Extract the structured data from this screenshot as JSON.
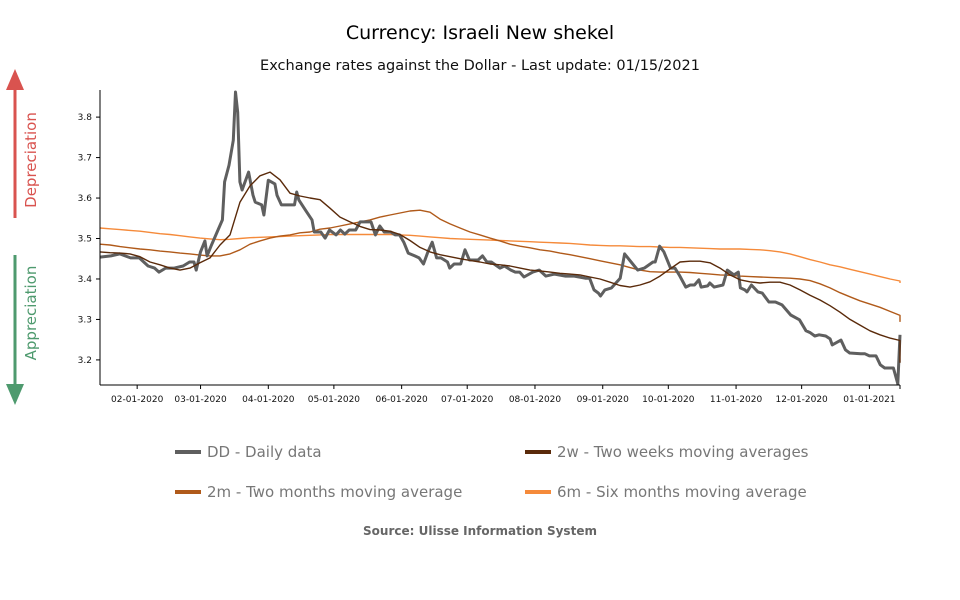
{
  "title": "Currency: Israeli New shekel",
  "subtitle": "Exchange rates against the Dollar - Last update: 01/15/2021",
  "side_labels": {
    "up": "Depreciation",
    "down": "Appreciation",
    "up_color": "#d9534f",
    "down_color": "#4e9a6e"
  },
  "source": "Source: Ulisse Information System",
  "chart_data": {
    "type": "line",
    "title": "Currency: Israeli New shekel",
    "xlabel": "",
    "ylabel": "",
    "x_unit": "days since 01-15-2020",
    "xlim": [
      0,
      366
    ],
    "ylim": [
      3.138,
      3.867
    ],
    "yticks": [
      3.2,
      3.3,
      3.4,
      3.5,
      3.6,
      3.7,
      3.8
    ],
    "ytick_labels": [
      "3.2",
      "3.3",
      "3.4",
      "3.5",
      "3.6",
      "3.7",
      "3.8"
    ],
    "xticks": [
      17,
      46,
      77,
      107,
      138,
      168,
      199,
      230,
      260,
      291,
      321,
      352
    ],
    "xtick_labels": [
      "02-01-2020",
      "03-01-2020",
      "04-01-2020",
      "05-01-2020",
      "06-01-2020",
      "07-01-2020",
      "08-01-2020",
      "09-01-2020",
      "10-01-2020",
      "11-01-2020",
      "12-01-2020",
      "01-01-2021"
    ],
    "legend_position": "bottom",
    "series": [
      {
        "key": "dd",
        "name": "DD - Daily data",
        "color": "#5f5f5f",
        "width": 3,
        "points": [
          [
            0,
            3.454
          ],
          [
            5,
            3.457
          ],
          [
            9,
            3.462
          ],
          [
            14,
            3.452
          ],
          [
            18,
            3.452
          ],
          [
            22,
            3.432
          ],
          [
            25,
            3.427
          ],
          [
            27,
            3.417
          ],
          [
            30,
            3.427
          ],
          [
            34,
            3.427
          ],
          [
            38,
            3.432
          ],
          [
            41,
            3.442
          ],
          [
            43,
            3.442
          ],
          [
            44,
            3.422
          ],
          [
            46,
            3.467
          ],
          [
            48,
            3.494
          ],
          [
            49,
            3.457
          ],
          [
            51,
            3.484
          ],
          [
            54,
            3.521
          ],
          [
            56,
            3.546
          ],
          [
            57,
            3.64
          ],
          [
            59,
            3.681
          ],
          [
            61,
            3.743
          ],
          [
            62,
            3.862
          ],
          [
            63,
            3.812
          ],
          [
            64,
            3.64
          ],
          [
            65,
            3.62
          ],
          [
            68,
            3.664
          ],
          [
            70,
            3.607
          ],
          [
            71,
            3.59
          ],
          [
            74,
            3.583
          ],
          [
            75,
            3.558
          ],
          [
            77,
            3.644
          ],
          [
            80,
            3.635
          ],
          [
            81,
            3.607
          ],
          [
            83,
            3.583
          ],
          [
            87,
            3.583
          ],
          [
            89,
            3.583
          ],
          [
            90,
            3.615
          ],
          [
            91,
            3.595
          ],
          [
            94,
            3.57
          ],
          [
            97,
            3.546
          ],
          [
            98,
            3.516
          ],
          [
            101,
            3.516
          ],
          [
            103,
            3.501
          ],
          [
            105,
            3.521
          ],
          [
            108,
            3.509
          ],
          [
            110,
            3.521
          ],
          [
            112,
            3.511
          ],
          [
            114,
            3.521
          ],
          [
            117,
            3.521
          ],
          [
            119,
            3.541
          ],
          [
            124,
            3.541
          ],
          [
            126,
            3.509
          ],
          [
            128,
            3.531
          ],
          [
            130,
            3.516
          ],
          [
            133,
            3.516
          ],
          [
            135,
            3.509
          ],
          [
            137,
            3.509
          ],
          [
            139,
            3.491
          ],
          [
            141,
            3.464
          ],
          [
            144,
            3.457
          ],
          [
            146,
            3.452
          ],
          [
            148,
            3.437
          ],
          [
            150,
            3.467
          ],
          [
            152,
            3.491
          ],
          [
            154,
            3.452
          ],
          [
            156,
            3.452
          ],
          [
            159,
            3.442
          ],
          [
            160,
            3.427
          ],
          [
            162,
            3.437
          ],
          [
            165,
            3.437
          ],
          [
            167,
            3.472
          ],
          [
            169,
            3.447
          ],
          [
            173,
            3.447
          ],
          [
            175,
            3.457
          ],
          [
            177,
            3.442
          ],
          [
            179,
            3.442
          ],
          [
            183,
            3.427
          ],
          [
            185,
            3.432
          ],
          [
            188,
            3.422
          ],
          [
            190,
            3.417
          ],
          [
            192,
            3.417
          ],
          [
            194,
            3.405
          ],
          [
            198,
            3.417
          ],
          [
            201,
            3.422
          ],
          [
            204,
            3.407
          ],
          [
            208,
            3.412
          ],
          [
            213,
            3.407
          ],
          [
            217,
            3.407
          ],
          [
            222,
            3.402
          ],
          [
            224,
            3.402
          ],
          [
            226,
            3.373
          ],
          [
            228,
            3.365
          ],
          [
            229,
            3.358
          ],
          [
            231,
            3.373
          ],
          [
            234,
            3.378
          ],
          [
            238,
            3.402
          ],
          [
            240,
            3.462
          ],
          [
            243,
            3.442
          ],
          [
            246,
            3.422
          ],
          [
            249,
            3.427
          ],
          [
            253,
            3.442
          ],
          [
            254,
            3.442
          ],
          [
            256,
            3.481
          ],
          [
            258,
            3.467
          ],
          [
            261,
            3.427
          ],
          [
            263,
            3.427
          ],
          [
            265,
            3.41
          ],
          [
            268,
            3.38
          ],
          [
            270,
            3.385
          ],
          [
            272,
            3.385
          ],
          [
            274,
            3.398
          ],
          [
            275,
            3.38
          ],
          [
            278,
            3.383
          ],
          [
            279,
            3.39
          ],
          [
            281,
            3.38
          ],
          [
            285,
            3.385
          ],
          [
            287,
            3.422
          ],
          [
            290,
            3.41
          ],
          [
            292,
            3.417
          ],
          [
            293,
            3.378
          ],
          [
            295,
            3.373
          ],
          [
            296,
            3.368
          ],
          [
            298,
            3.385
          ],
          [
            301,
            3.368
          ],
          [
            303,
            3.365
          ],
          [
            306,
            3.343
          ],
          [
            309,
            3.343
          ],
          [
            312,
            3.336
          ],
          [
            316,
            3.311
          ],
          [
            320,
            3.299
          ],
          [
            323,
            3.272
          ],
          [
            325,
            3.267
          ],
          [
            327,
            3.259
          ],
          [
            329,
            3.262
          ],
          [
            332,
            3.259
          ],
          [
            334,
            3.252
          ],
          [
            335,
            3.237
          ],
          [
            339,
            3.249
          ],
          [
            341,
            3.225
          ],
          [
            343,
            3.217
          ],
          [
            348,
            3.215
          ],
          [
            350,
            3.215
          ],
          [
            352,
            3.21
          ],
          [
            355,
            3.21
          ],
          [
            357,
            3.188
          ],
          [
            359,
            3.18
          ],
          [
            363,
            3.18
          ],
          [
            365,
            3.141
          ],
          [
            366,
            3.262
          ]
        ]
      },
      {
        "key": "2w",
        "name": "2w - Two weeks moving averages",
        "color": "#5a2a0a",
        "width": 1.4,
        "start_day": 0,
        "step_days": 4.575,
        "values": [
          3.467,
          3.465,
          3.464,
          3.462,
          3.455,
          3.442,
          3.435,
          3.427,
          3.422,
          3.427,
          3.44,
          3.452,
          3.484,
          3.509,
          3.59,
          3.63,
          3.655,
          3.664,
          3.645,
          3.612,
          3.605,
          3.6,
          3.596,
          3.575,
          3.553,
          3.541,
          3.53,
          3.522,
          3.521,
          3.518,
          3.51,
          3.495,
          3.478,
          3.467,
          3.46,
          3.455,
          3.45,
          3.446,
          3.442,
          3.437,
          3.435,
          3.432,
          3.427,
          3.422,
          3.42,
          3.417,
          3.414,
          3.412,
          3.41,
          3.405,
          3.4,
          3.392,
          3.384,
          3.38,
          3.385,
          3.393,
          3.407,
          3.425,
          3.442,
          3.444,
          3.444,
          3.44,
          3.427,
          3.41,
          3.398,
          3.393,
          3.39,
          3.392,
          3.392,
          3.385,
          3.373,
          3.36,
          3.348,
          3.334,
          3.318,
          3.3,
          3.286,
          3.272,
          3.262,
          3.254,
          3.248,
          3.24,
          3.236,
          3.23,
          3.222,
          3.212,
          3.193
        ]
      },
      {
        "key": "2m",
        "name": "2m - Two months moving average",
        "color": "#b05a1a",
        "width": 1.4,
        "start_day": 0,
        "step_days": 4.575,
        "values": [
          3.486,
          3.484,
          3.48,
          3.477,
          3.474,
          3.472,
          3.469,
          3.467,
          3.464,
          3.462,
          3.459,
          3.457,
          3.457,
          3.462,
          3.472,
          3.486,
          3.494,
          3.501,
          3.506,
          3.509,
          3.514,
          3.516,
          3.523,
          3.526,
          3.531,
          3.536,
          3.541,
          3.546,
          3.553,
          3.558,
          3.563,
          3.568,
          3.57,
          3.565,
          3.548,
          3.536,
          3.526,
          3.516,
          3.509,
          3.501,
          3.494,
          3.486,
          3.481,
          3.477,
          3.472,
          3.469,
          3.464,
          3.46,
          3.455,
          3.45,
          3.445,
          3.44,
          3.435,
          3.428,
          3.422,
          3.418,
          3.417,
          3.417,
          3.417,
          3.416,
          3.414,
          3.412,
          3.41,
          3.409,
          3.407,
          3.406,
          3.405,
          3.404,
          3.403,
          3.402,
          3.4,
          3.396,
          3.388,
          3.378,
          3.366,
          3.356,
          3.346,
          3.338,
          3.33,
          3.32,
          3.31,
          3.3,
          3.294
        ]
      },
      {
        "key": "6m",
        "name": "6m - Six months moving average",
        "color": "#f58a3a",
        "width": 1.4,
        "start_day": 0,
        "step_days": 4.575,
        "values": [
          3.526,
          3.524,
          3.522,
          3.52,
          3.518,
          3.515,
          3.512,
          3.51,
          3.507,
          3.504,
          3.501,
          3.499,
          3.497,
          3.498,
          3.5,
          3.502,
          3.503,
          3.504,
          3.505,
          3.506,
          3.507,
          3.508,
          3.509,
          3.51,
          3.51,
          3.51,
          3.51,
          3.51,
          3.51,
          3.51,
          3.509,
          3.508,
          3.506,
          3.504,
          3.502,
          3.5,
          3.499,
          3.498,
          3.497,
          3.496,
          3.495,
          3.494,
          3.493,
          3.492,
          3.491,
          3.49,
          3.489,
          3.488,
          3.486,
          3.484,
          3.483,
          3.482,
          3.482,
          3.481,
          3.48,
          3.48,
          3.479,
          3.478,
          3.478,
          3.477,
          3.476,
          3.475,
          3.474,
          3.474,
          3.474,
          3.473,
          3.472,
          3.47,
          3.467,
          3.462,
          3.455,
          3.448,
          3.442,
          3.435,
          3.43,
          3.424,
          3.418,
          3.412,
          3.406,
          3.4,
          3.395,
          3.39
        ]
      }
    ]
  }
}
